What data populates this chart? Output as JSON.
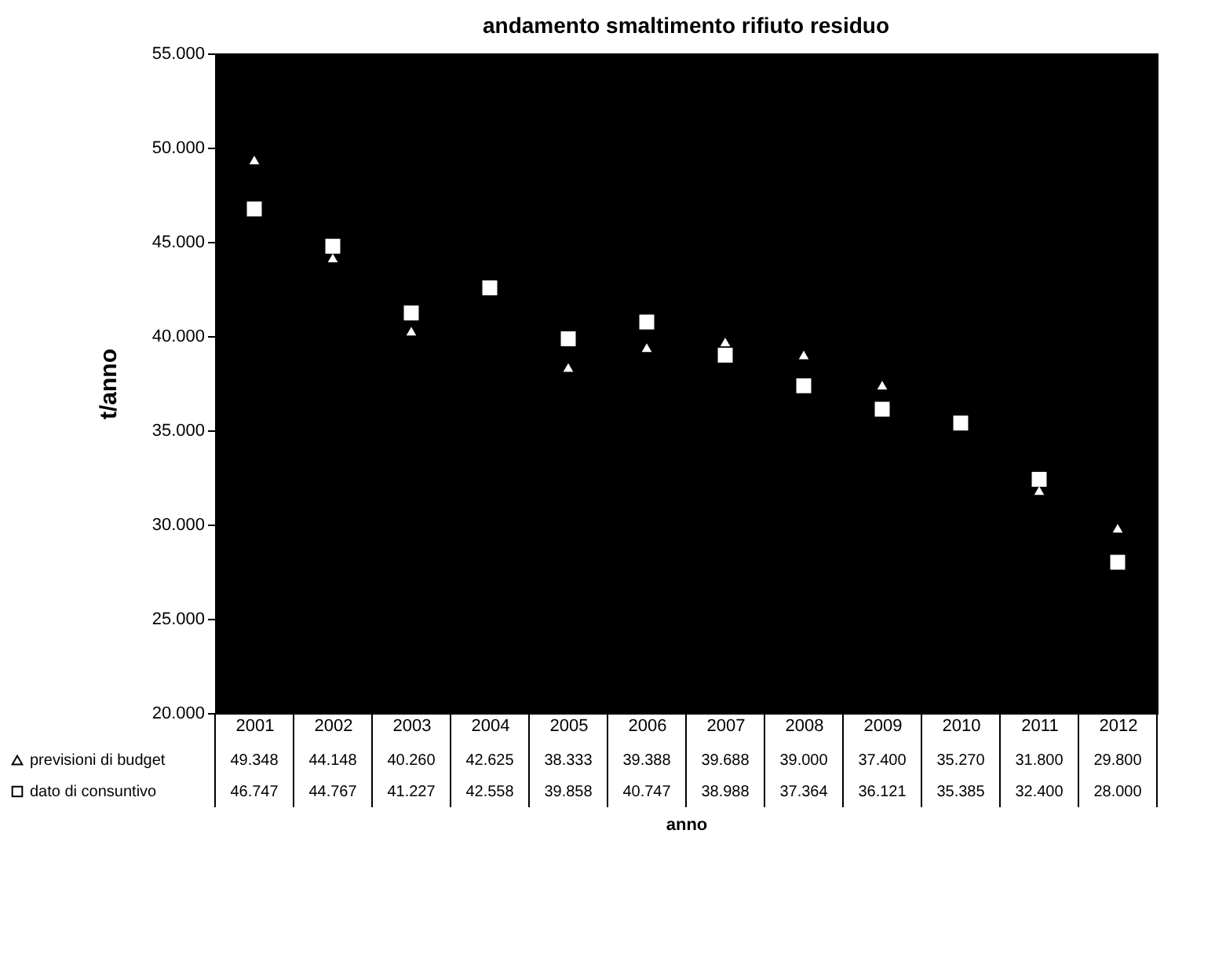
{
  "chart_data": {
    "type": "scatter",
    "title": "andamento smaltimento rifiuto residuo",
    "xlabel": "anno",
    "ylabel": "t/anno",
    "categories": [
      "2001",
      "2002",
      "2003",
      "2004",
      "2005",
      "2006",
      "2007",
      "2008",
      "2009",
      "2010",
      "2011",
      "2012"
    ],
    "series": [
      {
        "name": "previsioni di budget",
        "color": "#ffffff",
        "marker": "triangle",
        "values": [
          49348,
          44148,
          40260,
          null,
          38333,
          39388,
          39688,
          39000,
          37400,
          null,
          31800,
          29800
        ],
        "value_labels": [
          "49.348",
          "44.148",
          "40.260",
          "42.625",
          "38.333",
          "39.388",
          "39.688",
          "39.000",
          "37.400",
          "35.270",
          "31.800",
          "29.800"
        ]
      },
      {
        "name": "dato di consuntivo",
        "color": "#ffffff",
        "marker": "square",
        "values": [
          46747,
          44767,
          41227,
          42558,
          39858,
          40747,
          38988,
          37364,
          36121,
          35385,
          32400,
          28000
        ],
        "value_labels": [
          "46.747",
          "44.767",
          "41.227",
          "42.558",
          "39.858",
          "40.747",
          "38.988",
          "37.364",
          "36.121",
          "35.385",
          "32.400",
          "28.000"
        ]
      }
    ],
    "ylim": [
      20000,
      55000
    ],
    "yticks": [
      {
        "value": 20000,
        "label": "20.000"
      },
      {
        "value": 25000,
        "label": "25.000"
      },
      {
        "value": 30000,
        "label": "30.000"
      },
      {
        "value": 35000,
        "label": "35.000"
      },
      {
        "value": 40000,
        "label": "40.000"
      },
      {
        "value": 45000,
        "label": "45.000"
      },
      {
        "value": 50000,
        "label": "50.000"
      },
      {
        "value": 55000,
        "label": "55.000"
      }
    ],
    "grid": false,
    "legend": "bottom left"
  }
}
